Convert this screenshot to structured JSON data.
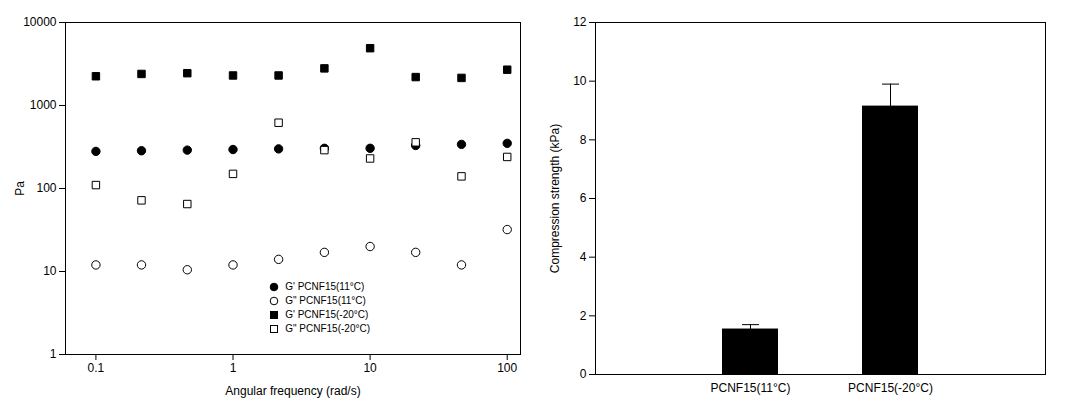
{
  "chart_data": [
    {
      "type": "scatter",
      "x_label": "Angular frequency (rad/s)",
      "y_label": "Pa",
      "x": [
        0.1,
        0.215,
        0.464,
        1,
        2.15,
        4.64,
        10,
        21.5,
        46.4,
        100
      ],
      "series": [
        {
          "name": "G' PCNF15(11°C)",
          "color": "#000000",
          "marker": "circle",
          "values": [
            280,
            285,
            290,
            295,
            300,
            305,
            305,
            330,
            340,
            350
          ]
        },
        {
          "name": "G\" PCNF15(11°C)",
          "color": "#000000",
          "marker": "circle_open",
          "values": [
            12,
            12,
            10.5,
            12,
            14,
            17,
            20,
            17,
            12,
            32
          ]
        },
        {
          "name": "G' PCNF15(-20°C)",
          "color": "#000000",
          "marker": "square",
          "values": [
            2250,
            2400,
            2450,
            2300,
            2300,
            2800,
            4900,
            2200,
            2150,
            2700
          ]
        },
        {
          "name": "G\" PCNF15(-20°C)",
          "color": "#000000",
          "marker": "square_open",
          "values": [
            110,
            72,
            65,
            150,
            620,
            290,
            230,
            360,
            140,
            240
          ]
        }
      ],
      "xlim": [
        0.06,
        125
      ],
      "xticks": [
        0.1,
        1,
        10,
        100
      ],
      "ylim": [
        1,
        10000
      ],
      "yticks": [
        1,
        10,
        100,
        1000,
        10000
      ],
      "log": true,
      "grid": false,
      "legend": "lower right"
    },
    {
      "type": "bar",
      "y_label": "Compression strength (kPa)",
      "categories": [
        "PCNF15(11°C)",
        "PCNF15(-20°C)"
      ],
      "values": [
        1.55,
        9.15
      ],
      "errors": [
        0.15,
        0.75
      ],
      "color": "#000000",
      "ylim": [
        0,
        12
      ],
      "yticks": [
        0,
        2,
        4,
        6,
        8,
        10,
        12
      ],
      "grid": false
    }
  ]
}
